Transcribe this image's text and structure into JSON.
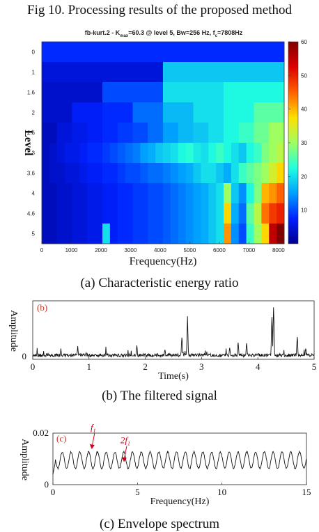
{
  "figure": {
    "title": "Fig 10. Processing results of the proposed method",
    "captions": [
      "(a) Characteristic energy ratio",
      "(b) The filtered signal",
      "(c) Envelope spectrum"
    ]
  },
  "chart_data": [
    {
      "type": "heatmap",
      "panel": "a",
      "title_parts": {
        "pre": "fb-kurt.2 - K",
        "sub": "max",
        "post": "=60.3 @ level 5, Bw=256 Hz, f",
        "sub2": "c",
        "post2": "=7808Hz"
      },
      "xlabel": "Frequency(Hz)",
      "ylabel": "Level",
      "xlim": [
        0,
        8192
      ],
      "x_ticks": [
        "0",
        "1000",
        "2000",
        "3000",
        "4000",
        "5000",
        "6000",
        "7000",
        "8000"
      ],
      "x_tick_values": [
        0,
        1000,
        2000,
        3000,
        4000,
        5000,
        6000,
        7000,
        8000
      ],
      "y_ticks": [
        "0",
        "1",
        "1.6",
        "2",
        "2.6",
        "3",
        "3.6",
        "4",
        "4.6",
        "5"
      ],
      "colorbar": {
        "min": 0,
        "max": 60,
        "ticks": [
          "10",
          "20",
          "30",
          "40",
          "50",
          "60"
        ],
        "tick_values": [
          10,
          20,
          30,
          40,
          50,
          60
        ]
      },
      "colormap": [
        "#00008f",
        "#0020ff",
        "#00a0ff",
        "#20ffdf",
        "#9fff60",
        "#ffdf00",
        "#ff6000",
        "#df0000",
        "#800000"
      ],
      "rows": [
        [
          8
        ],
        [
          5,
          18
        ],
        [
          4,
          10,
          20,
          22
        ],
        [
          4,
          7,
          8,
          12,
          17,
          20,
          22,
          26
        ],
        [
          3,
          5,
          6,
          7,
          8,
          9,
          10,
          12,
          15,
          17,
          18,
          20,
          22,
          24,
          27,
          30
        ],
        [
          3,
          4,
          5,
          6,
          6,
          7,
          8,
          8,
          9,
          10,
          11,
          12,
          13,
          15,
          16,
          18,
          19,
          20,
          22,
          23,
          21,
          20,
          22,
          24,
          22,
          20,
          18,
          22,
          24,
          28,
          30,
          32
        ],
        [
          3,
          4,
          4,
          5,
          5,
          6,
          7,
          7,
          8,
          8,
          9,
          10,
          10,
          11,
          12,
          12,
          13,
          14,
          15,
          16,
          18,
          20,
          20,
          18,
          16,
          20,
          24,
          26,
          28,
          30,
          34,
          38
        ],
        [
          3,
          3,
          4,
          4,
          5,
          5,
          6,
          6,
          7,
          7,
          8,
          8,
          9,
          9,
          10,
          10,
          11,
          12,
          13,
          14,
          15,
          16,
          18,
          20,
          30,
          18,
          14,
          22,
          28,
          40,
          42,
          45
        ],
        [
          3,
          3,
          4,
          4,
          5,
          5,
          6,
          6,
          7,
          7,
          8,
          8,
          9,
          9,
          10,
          10,
          11,
          12,
          13,
          14,
          15,
          16,
          18,
          20,
          38,
          16,
          12,
          26,
          32,
          44,
          48,
          50
        ],
        [
          3,
          3,
          4,
          4,
          5,
          5,
          6,
          6,
          20,
          7,
          8,
          8,
          9,
          9,
          10,
          10,
          11,
          12,
          13,
          14,
          15,
          16,
          18,
          20,
          42,
          14,
          10,
          24,
          30,
          38,
          55,
          60
        ]
      ]
    },
    {
      "type": "line",
      "panel": "b",
      "label": "(b)",
      "xlabel": "Time(s)",
      "ylabel": "Amplitude",
      "xlim": [
        0,
        5
      ],
      "x_ticks": [
        "0",
        "1",
        "2",
        "3",
        "4",
        "5"
      ],
      "y_ticks": [
        "0"
      ],
      "baseline": 0.05,
      "peaks": [
        {
          "x": 0.5,
          "y": 0.15
        },
        {
          "x": 0.8,
          "y": 0.22
        },
        {
          "x": 0.95,
          "y": 0.12
        },
        {
          "x": 1.3,
          "y": 0.12
        },
        {
          "x": 1.85,
          "y": 0.25
        },
        {
          "x": 2.35,
          "y": 0.18
        },
        {
          "x": 2.65,
          "y": 0.45
        },
        {
          "x": 2.75,
          "y": 0.78
        },
        {
          "x": 3.5,
          "y": 0.22
        },
        {
          "x": 3.65,
          "y": 0.35
        },
        {
          "x": 3.8,
          "y": 0.3
        },
        {
          "x": 4.25,
          "y": 0.9
        },
        {
          "x": 4.28,
          "y": 0.95
        },
        {
          "x": 4.7,
          "y": 0.45
        },
        {
          "x": 4.85,
          "y": 0.2
        }
      ]
    },
    {
      "type": "line",
      "panel": "c",
      "label": "(c)",
      "xlabel": "Frequency(Hz)",
      "ylabel": "Amplitude",
      "xlim": [
        0,
        15
      ],
      "ylim": [
        0,
        0.02
      ],
      "x_ticks": [
        "0",
        "5",
        "10",
        "15"
      ],
      "y_ticks": [
        "0",
        "0.02"
      ],
      "period": 0.52,
      "amplitude_mean": 0.0095,
      "amplitude_swing": 0.0032,
      "annotations": [
        {
          "text": "f",
          "sub": "1",
          "x": 2.3,
          "y": 0.0135
        },
        {
          "text": "2f",
          "sub": "1",
          "x": 4.2,
          "y": 0.0085
        }
      ]
    }
  ]
}
